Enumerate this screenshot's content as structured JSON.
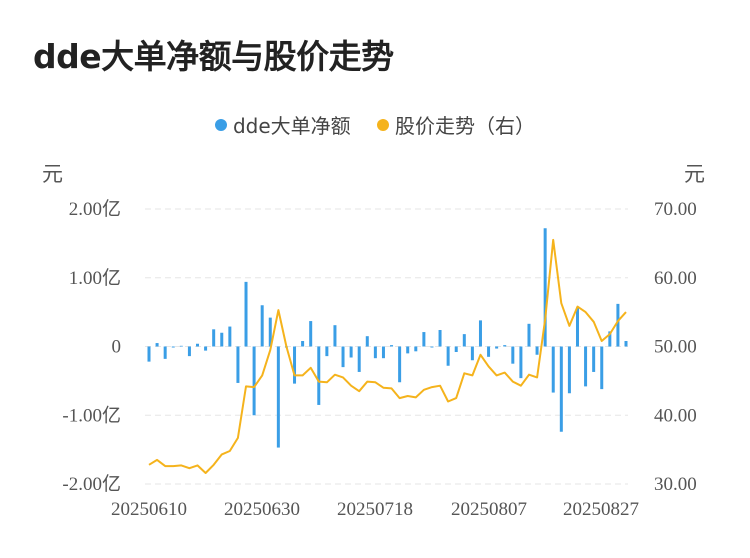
{
  "title": "dde大单净额与股价走势",
  "legend": {
    "left_label": "dde大单净额",
    "right_label": "股价走势（右）"
  },
  "units": {
    "left": "元",
    "right": "元"
  },
  "colors": {
    "bar": "#3a9ee6",
    "line": "#f5b31c",
    "grid": "#e6e6e6"
  },
  "chart_data": {
    "type": "bar",
    "title": "dde大单净额与股价走势",
    "x_tick_labels": [
      "20250610",
      "20250630",
      "20250718",
      "20250807",
      "20250827"
    ],
    "y_left": {
      "ticks": [
        2,
        1,
        0,
        -1,
        -2
      ],
      "tick_labels": [
        "2.00亿",
        "1.00亿",
        "0",
        "-1.00亿",
        "-2.00亿"
      ],
      "range": [
        -2,
        2
      ]
    },
    "y_right": {
      "ticks": [
        70,
        60,
        50,
        40,
        30
      ],
      "tick_labels": [
        "70.00",
        "60.00",
        "50.00",
        "40.00",
        "30.00"
      ],
      "range": [
        30,
        70
      ]
    },
    "grid": true,
    "legend_position": "top-center",
    "series": [
      {
        "name": "dde大单净额",
        "type": "bar",
        "axis": "left",
        "values": [
          -0.22,
          0.05,
          -0.18,
          0.0,
          0.01,
          -0.14,
          0.04,
          -0.06,
          0.25,
          0.2,
          0.29,
          -0.53,
          0.94,
          -1.0,
          0.6,
          0.42,
          -1.47,
          0.0,
          -0.54,
          0.08,
          0.37,
          -0.85,
          -0.14,
          0.31,
          -0.3,
          -0.16,
          -0.37,
          0.15,
          -0.17,
          -0.17,
          0.02,
          -0.52,
          -0.1,
          -0.07,
          0.21,
          0.0,
          0.24,
          -0.28,
          -0.08,
          0.18,
          -0.2,
          0.38,
          -0.15,
          -0.03,
          0.02,
          -0.25,
          -0.46,
          0.33,
          -0.12,
          1.72,
          -0.67,
          -1.24,
          -0.68,
          0.57,
          -0.58,
          -0.37,
          -0.62,
          0.22,
          0.62,
          0.08
        ]
      },
      {
        "name": "股价走势（右）",
        "type": "line",
        "axis": "right",
        "values": [
          32.8,
          33.5,
          32.6,
          32.6,
          32.7,
          32.3,
          32.7,
          31.6,
          32.8,
          34.3,
          34.8,
          36.7,
          44.2,
          44.1,
          45.8,
          49.5,
          55.3,
          50.0,
          45.8,
          45.8,
          46.9,
          44.9,
          44.8,
          45.9,
          45.5,
          44.3,
          43.5,
          44.9,
          44.8,
          44.0,
          43.9,
          42.5,
          42.8,
          42.6,
          43.7,
          44.1,
          44.3,
          42.0,
          42.5,
          46.1,
          45.8,
          48.8,
          47.1,
          45.8,
          46.2,
          44.9,
          44.3,
          45.9,
          45.5,
          54.0,
          65.5,
          56.3,
          53.0,
          55.8,
          55.0,
          53.6,
          50.8,
          51.8,
          53.7,
          55.0
        ]
      }
    ]
  }
}
